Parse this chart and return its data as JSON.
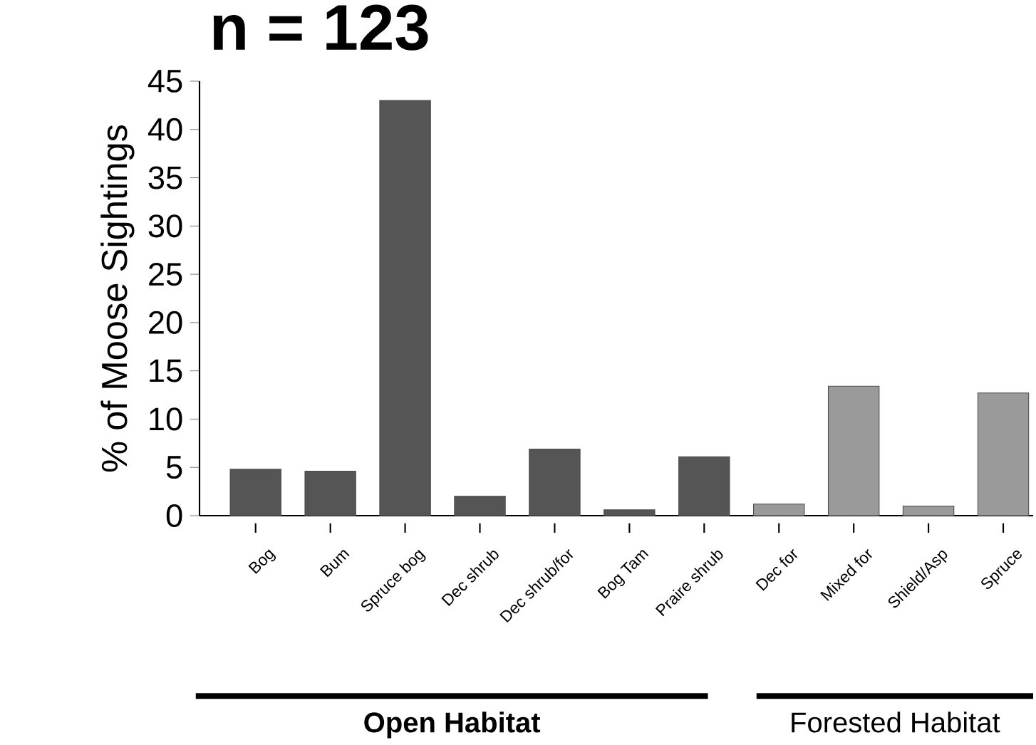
{
  "chart_data": {
    "type": "bar",
    "title": "n = 123",
    "ylabel": "% of Moose Sightings",
    "categories": [
      "Bog",
      "Bum",
      "Spruce bog",
      "Dec shrub",
      "Dec shrub/for",
      "Bog Tam",
      "Praire shrub",
      "Dec for",
      "Mixed for",
      "Shield/Asp",
      "Spruce"
    ],
    "values": [
      4.8,
      4.6,
      43.0,
      2.0,
      6.9,
      0.6,
      6.1,
      1.2,
      13.4,
      1.0,
      12.7
    ],
    "colors": [
      "#555555",
      "#555555",
      "#555555",
      "#555555",
      "#555555",
      "#555555",
      "#555555",
      "#9a9a9a",
      "#9a9a9a",
      "#9a9a9a",
      "#9a9a9a"
    ],
    "ylim": [
      0,
      45
    ],
    "yticks": [
      0,
      5,
      10,
      15,
      20,
      25,
      30,
      35,
      40,
      45
    ],
    "annotations": [
      "Open Habitat",
      "Forested Habitat"
    ]
  }
}
